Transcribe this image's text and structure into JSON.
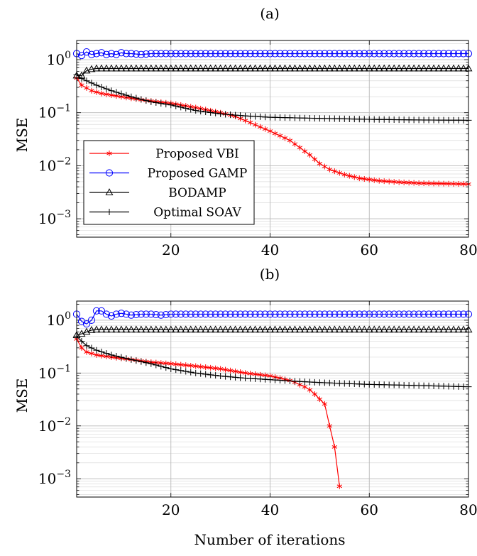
{
  "figure": {
    "xlabel": "Number of iterations"
  },
  "chart_data": [
    {
      "panel_label": "(a)",
      "type": "line",
      "ylabel": "MSE",
      "xlabel": "",
      "yscale": "log",
      "xlim": [
        1,
        80
      ],
      "ylim": [
        0.00045,
        2.3
      ],
      "xticks": [
        20,
        40,
        60,
        80
      ],
      "yticks": [
        {
          "value": 0.001,
          "mant": "10",
          "exp": "−3"
        },
        {
          "value": 0.01,
          "mant": "10",
          "exp": "−2"
        },
        {
          "value": 0.1,
          "mant": "10",
          "exp": "−1"
        },
        {
          "value": 1,
          "mant": "10",
          "exp": "0"
        }
      ],
      "grid": true,
      "legend": {
        "position": "bottom-left"
      },
      "series": [
        {
          "name": "Proposed VBI",
          "color": "#ff0000",
          "marker": "asterisk",
          "points": [
            [
              1,
              0.45
            ],
            [
              2,
              0.33
            ],
            [
              4,
              0.26
            ],
            [
              6,
              0.23
            ],
            [
              10,
              0.2
            ],
            [
              15,
              0.17
            ],
            [
              20,
              0.15
            ],
            [
              25,
              0.125
            ],
            [
              30,
              0.1
            ],
            [
              33,
              0.085
            ],
            [
              36,
              0.065
            ],
            [
              40,
              0.045
            ],
            [
              44,
              0.03
            ],
            [
              46,
              0.022
            ],
            [
              48,
              0.016
            ],
            [
              50,
              0.011
            ],
            [
              52,
              0.0085
            ],
            [
              55,
              0.0068
            ],
            [
              58,
              0.0058
            ],
            [
              62,
              0.0052
            ],
            [
              66,
              0.0049
            ],
            [
              70,
              0.0047
            ],
            [
              75,
              0.0046
            ],
            [
              80,
              0.0045
            ]
          ]
        },
        {
          "name": "Proposed GAMP",
          "color": "#0000ff",
          "marker": "circle",
          "points": [
            [
              1,
              1.3
            ],
            [
              2,
              1.2
            ],
            [
              3,
              1.4
            ],
            [
              4,
              1.25
            ],
            [
              5,
              1.3
            ],
            [
              6,
              1.35
            ],
            [
              7,
              1.25
            ],
            [
              8,
              1.3
            ],
            [
              9,
              1.25
            ],
            [
              10,
              1.35
            ],
            [
              11,
              1.3
            ],
            [
              12,
              1.3
            ],
            [
              14,
              1.25
            ],
            [
              16,
              1.3
            ],
            [
              18,
              1.3
            ],
            [
              20,
              1.3
            ],
            [
              30,
              1.3
            ],
            [
              40,
              1.3
            ],
            [
              50,
              1.3
            ],
            [
              60,
              1.3
            ],
            [
              70,
              1.3
            ],
            [
              80,
              1.3
            ]
          ]
        },
        {
          "name": "BODAMP",
          "color": "#000000",
          "marker": "triangle",
          "points": [
            [
              1,
              0.5
            ],
            [
              2,
              0.5
            ],
            [
              3,
              0.62
            ],
            [
              4,
              0.66
            ],
            [
              5,
              0.68
            ],
            [
              6,
              0.68
            ],
            [
              10,
              0.68
            ],
            [
              20,
              0.68
            ],
            [
              40,
              0.68
            ],
            [
              60,
              0.68
            ],
            [
              80,
              0.68
            ]
          ]
        },
        {
          "name": "Optimal SOAV",
          "color": "#000000",
          "marker": "plus",
          "points": [
            [
              1,
              0.52
            ],
            [
              2,
              0.44
            ],
            [
              3,
              0.4
            ],
            [
              5,
              0.33
            ],
            [
              8,
              0.26
            ],
            [
              12,
              0.2
            ],
            [
              16,
              0.16
            ],
            [
              20,
              0.14
            ],
            [
              25,
              0.11
            ],
            [
              30,
              0.095
            ],
            [
              35,
              0.087
            ],
            [
              40,
              0.082
            ],
            [
              50,
              0.078
            ],
            [
              60,
              0.075
            ],
            [
              70,
              0.073
            ],
            [
              80,
              0.072
            ]
          ]
        }
      ]
    },
    {
      "panel_label": "(b)",
      "type": "line",
      "ylabel": "MSE",
      "xlabel": "Number of iterations",
      "yscale": "log",
      "xlim": [
        1,
        80
      ],
      "ylim": [
        0.00045,
        2.3
      ],
      "xticks": [
        20,
        40,
        60,
        80
      ],
      "yticks": [
        {
          "value": 0.001,
          "mant": "10",
          "exp": "−3"
        },
        {
          "value": 0.01,
          "mant": "10",
          "exp": "−2"
        },
        {
          "value": 0.1,
          "mant": "10",
          "exp": "−1"
        },
        {
          "value": 1,
          "mant": "10",
          "exp": "0"
        }
      ],
      "grid": true,
      "series": [
        {
          "name": "Proposed VBI",
          "color": "#ff0000",
          "marker": "asterisk",
          "points": [
            [
              1,
              0.44
            ],
            [
              2,
              0.3
            ],
            [
              3,
              0.25
            ],
            [
              5,
              0.22
            ],
            [
              8,
              0.2
            ],
            [
              12,
              0.18
            ],
            [
              16,
              0.16
            ],
            [
              20,
              0.15
            ],
            [
              25,
              0.135
            ],
            [
              30,
              0.12
            ],
            [
              35,
              0.1
            ],
            [
              40,
              0.088
            ],
            [
              42,
              0.08
            ],
            [
              44,
              0.072
            ],
            [
              45,
              0.067
            ],
            [
              46,
              0.06
            ],
            [
              47,
              0.055
            ],
            [
              48,
              0.048
            ],
            [
              49,
              0.04
            ],
            [
              50,
              0.032
            ],
            [
              51,
              0.026
            ],
            [
              52,
              0.01
            ],
            [
              53,
              0.004
            ],
            [
              54,
              0.00072
            ]
          ]
        },
        {
          "name": "Proposed GAMP",
          "color": "#0000ff",
          "marker": "circle",
          "points": [
            [
              1,
              1.3
            ],
            [
              2,
              0.95
            ],
            [
              3,
              0.85
            ],
            [
              4,
              1.0
            ],
            [
              5,
              1.5
            ],
            [
              6,
              1.5
            ],
            [
              7,
              1.3
            ],
            [
              8,
              1.2
            ],
            [
              9,
              1.3
            ],
            [
              10,
              1.35
            ],
            [
              11,
              1.3
            ],
            [
              12,
              1.25
            ],
            [
              14,
              1.3
            ],
            [
              16,
              1.3
            ],
            [
              18,
              1.25
            ],
            [
              20,
              1.3
            ],
            [
              30,
              1.3
            ],
            [
              40,
              1.3
            ],
            [
              50,
              1.3
            ],
            [
              60,
              1.3
            ],
            [
              70,
              1.3
            ],
            [
              80,
              1.3
            ]
          ]
        },
        {
          "name": "BODAMP",
          "color": "#000000",
          "marker": "triangle",
          "points": [
            [
              1,
              0.52
            ],
            [
              2,
              0.55
            ],
            [
              3,
              0.6
            ],
            [
              4,
              0.65
            ],
            [
              5,
              0.66
            ],
            [
              6,
              0.66
            ],
            [
              10,
              0.66
            ],
            [
              20,
              0.66
            ],
            [
              40,
              0.66
            ],
            [
              60,
              0.66
            ],
            [
              80,
              0.66
            ]
          ]
        },
        {
          "name": "Optimal SOAV",
          "color": "#000000",
          "marker": "plus",
          "points": [
            [
              1,
              0.5
            ],
            [
              2,
              0.4
            ],
            [
              3,
              0.33
            ],
            [
              5,
              0.27
            ],
            [
              8,
              0.22
            ],
            [
              12,
              0.18
            ],
            [
              16,
              0.15
            ],
            [
              20,
              0.12
            ],
            [
              25,
              0.1
            ],
            [
              30,
              0.088
            ],
            [
              35,
              0.08
            ],
            [
              40,
              0.075
            ],
            [
              45,
              0.07
            ],
            [
              50,
              0.066
            ],
            [
              60,
              0.061
            ],
            [
              70,
              0.058
            ],
            [
              80,
              0.055
            ]
          ]
        }
      ]
    }
  ]
}
